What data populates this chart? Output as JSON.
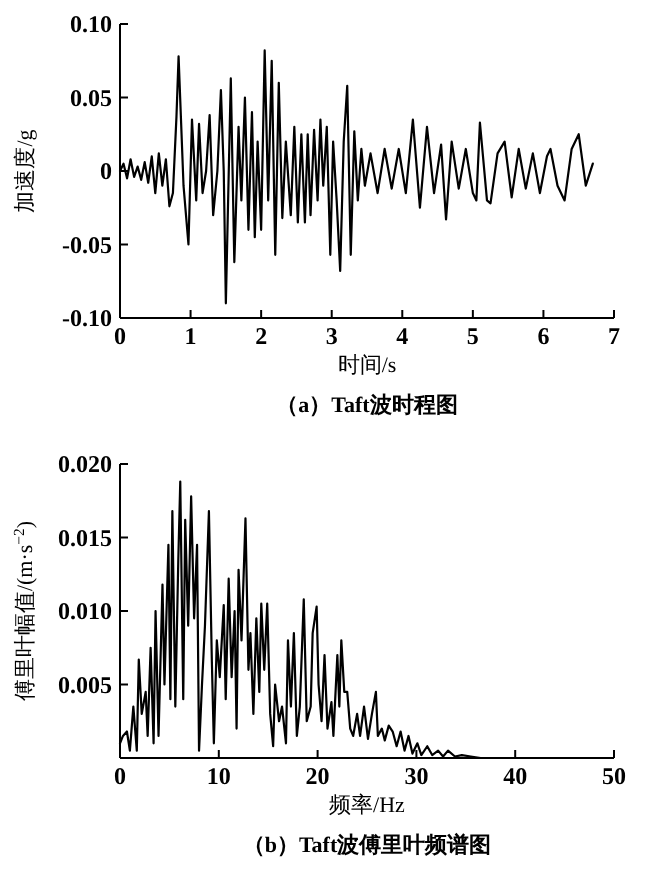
{
  "chart_data": [
    {
      "type": "line",
      "xlabel": "时间/s",
      "ylabel": "加速度/g",
      "annotations": [
        "（a）Taft波时程图"
      ],
      "xlim": [
        0,
        7
      ],
      "xticks": [
        0,
        1,
        2,
        3,
        4,
        5,
        6,
        7
      ],
      "ylim": [
        -0.1,
        0.1
      ],
      "yticks": [
        {
          "value": 0.1,
          "label": "0.10"
        },
        0.05,
        0,
        -0.05,
        {
          "value": -0.1,
          "label": "-0.10"
        }
      ],
      "series": [
        {
          "color": "#000000",
          "x": [
            0,
            0.05,
            0.1,
            0.15,
            0.2,
            0.25,
            0.3,
            0.35,
            0.4,
            0.45,
            0.5,
            0.55,
            0.6,
            0.65,
            0.7,
            0.75,
            0.8,
            0.83,
            0.9,
            0.97,
            1.02,
            1.08,
            1.12,
            1.17,
            1.22,
            1.27,
            1.32,
            1.38,
            1.43,
            1.47,
            1.5,
            1.57,
            1.62,
            1.68,
            1.72,
            1.77,
            1.82,
            1.87,
            1.91,
            1.95,
            2.0,
            2.05,
            2.1,
            2.15,
            2.2,
            2.25,
            2.3,
            2.35,
            2.42,
            2.47,
            2.52,
            2.57,
            2.62,
            2.66,
            2.7,
            2.75,
            2.8,
            2.84,
            2.88,
            2.93,
            2.98,
            3.02,
            3.07,
            3.12,
            3.17,
            3.22,
            3.27,
            3.32,
            3.37,
            3.42,
            3.47,
            3.55,
            3.65,
            3.75,
            3.85,
            3.95,
            4.05,
            4.15,
            4.25,
            4.35,
            4.45,
            4.55,
            4.62,
            4.7,
            4.8,
            4.9,
            5.0,
            5.05,
            5.1,
            5.2,
            5.25,
            5.35,
            5.45,
            5.55,
            5.65,
            5.75,
            5.85,
            5.95,
            6.05,
            6.1,
            6.2,
            6.3,
            6.4,
            6.5,
            6.6,
            6.7
          ],
          "values": [
            0.0,
            0.005,
            -0.005,
            0.008,
            -0.004,
            0.003,
            -0.006,
            0.006,
            -0.008,
            0.01,
            -0.015,
            0.012,
            -0.01,
            0.008,
            -0.024,
            -0.015,
            0.037,
            0.078,
            -0.01,
            -0.05,
            0.035,
            -0.02,
            0.032,
            -0.015,
            0.0,
            0.038,
            -0.03,
            0.0,
            0.055,
            0.0,
            -0.09,
            0.063,
            -0.062,
            0.03,
            -0.02,
            0.05,
            -0.04,
            0.04,
            -0.045,
            0.02,
            -0.04,
            0.082,
            -0.02,
            0.075,
            -0.057,
            0.06,
            -0.032,
            0.02,
            -0.03,
            0.03,
            -0.035,
            0.025,
            -0.035,
            0.025,
            -0.03,
            0.028,
            -0.02,
            0.035,
            -0.01,
            0.03,
            -0.057,
            0.02,
            -0.02,
            -0.068,
            0.02,
            0.058,
            -0.057,
            0.027,
            -0.02,
            0.015,
            -0.01,
            0.012,
            -0.015,
            0.015,
            -0.012,
            0.015,
            -0.015,
            0.035,
            -0.025,
            0.03,
            -0.015,
            0.018,
            -0.033,
            0.02,
            -0.012,
            0.015,
            -0.015,
            -0.02,
            0.033,
            -0.02,
            -0.022,
            0.012,
            0.02,
            -0.018,
            0.015,
            -0.012,
            0.012,
            -0.015,
            0.01,
            0.015,
            -0.01,
            -0.02,
            0.015,
            0.025,
            -0.01,
            0.005
          ]
        }
      ]
    },
    {
      "type": "line",
      "xlabel": "频率/Hz",
      "ylabel": "傅里叶幅值/(m·s$^{−2}$)",
      "annotations": [
        "（b）Taft波傅里叶频谱图"
      ],
      "xlim": [
        0,
        50
      ],
      "xticks": [
        0,
        10,
        20,
        30,
        40,
        50
      ],
      "ylim": [
        0,
        0.02
      ],
      "yticks": [
        0.005,
        {
          "value": 0.01,
          "label": "0.010"
        },
        0.015,
        {
          "value": 0.02,
          "label": "0.020"
        }
      ],
      "series": [
        {
          "color": "#000000",
          "x": [
            0,
            0.3,
            0.7,
            1.0,
            1.35,
            1.7,
            1.9,
            2.2,
            2.6,
            2.8,
            3.1,
            3.4,
            3.6,
            3.9,
            4.3,
            4.5,
            4.9,
            5.1,
            5.3,
            5.6,
            5.9,
            6.1,
            6.4,
            6.6,
            6.9,
            7.2,
            7.5,
            7.8,
            8.0,
            8.3,
            8.6,
            9.0,
            9.3,
            9.5,
            9.8,
            10.1,
            10.5,
            10.7,
            11.0,
            11.3,
            11.6,
            11.8,
            12.0,
            12.3,
            12.7,
            13.0,
            13.2,
            13.5,
            13.8,
            14.1,
            14.3,
            14.6,
            14.9,
            15.2,
            15.5,
            15.7,
            16.1,
            16.4,
            16.8,
            17.0,
            17.3,
            17.6,
            17.9,
            18.2,
            18.6,
            18.9,
            19.3,
            19.5,
            19.9,
            20.1,
            20.4,
            20.7,
            21.0,
            21.4,
            21.6,
            22.0,
            22.2,
            22.4,
            22.7,
            23.0,
            23.3,
            23.6,
            24.0,
            24.3,
            24.7,
            25.1,
            25.5,
            25.9,
            26.1,
            26.5,
            26.8,
            27.2,
            27.6,
            28.0,
            28.4,
            28.8,
            29.2,
            29.6,
            30.1,
            30.5,
            31.1,
            31.6,
            32.2,
            32.7,
            33.2,
            33.9,
            34.6,
            35.5,
            36.5,
            37.8,
            40.0
          ],
          "values": [
            0.001,
            0.0015,
            0.0018,
            0.0005,
            0.0035,
            0.0005,
            0.0067,
            0.003,
            0.0045,
            0.0015,
            0.0075,
            0.001,
            0.01,
            0.0015,
            0.0118,
            0.005,
            0.0145,
            0.004,
            0.0168,
            0.0035,
            0.0135,
            0.0188,
            0.004,
            0.0162,
            0.009,
            0.0178,
            0.0095,
            0.0145,
            0.0005,
            0.005,
            0.009,
            0.0168,
            0.0065,
            0.001,
            0.008,
            0.0055,
            0.0104,
            0.004,
            0.0122,
            0.0055,
            0.01,
            0.002,
            0.0128,
            0.008,
            0.0163,
            0.006,
            0.0085,
            0.003,
            0.0095,
            0.0045,
            0.0105,
            0.006,
            0.0105,
            0.003,
            0.0008,
            0.005,
            0.0025,
            0.0035,
            0.001,
            0.008,
            0.0035,
            0.0085,
            0.0015,
            0.0035,
            0.0108,
            0.0025,
            0.0035,
            0.0085,
            0.0103,
            0.005,
            0.0025,
            0.007,
            0.002,
            0.0038,
            0.0015,
            0.007,
            0.0035,
            0.008,
            0.0045,
            0.0045,
            0.002,
            0.0015,
            0.003,
            0.0015,
            0.0035,
            0.0013,
            0.003,
            0.0045,
            0.0015,
            0.002,
            0.0012,
            0.0022,
            0.0018,
            0.0008,
            0.0018,
            0.0005,
            0.0015,
            0.0003,
            0.001,
            0.0002,
            0.0008,
            0.0002,
            0.0005,
            0.0001,
            0.0005,
            0.0001,
            0.0002,
            0.0001,
            0.0,
            0.0,
            0.0
          ]
        }
      ]
    }
  ]
}
